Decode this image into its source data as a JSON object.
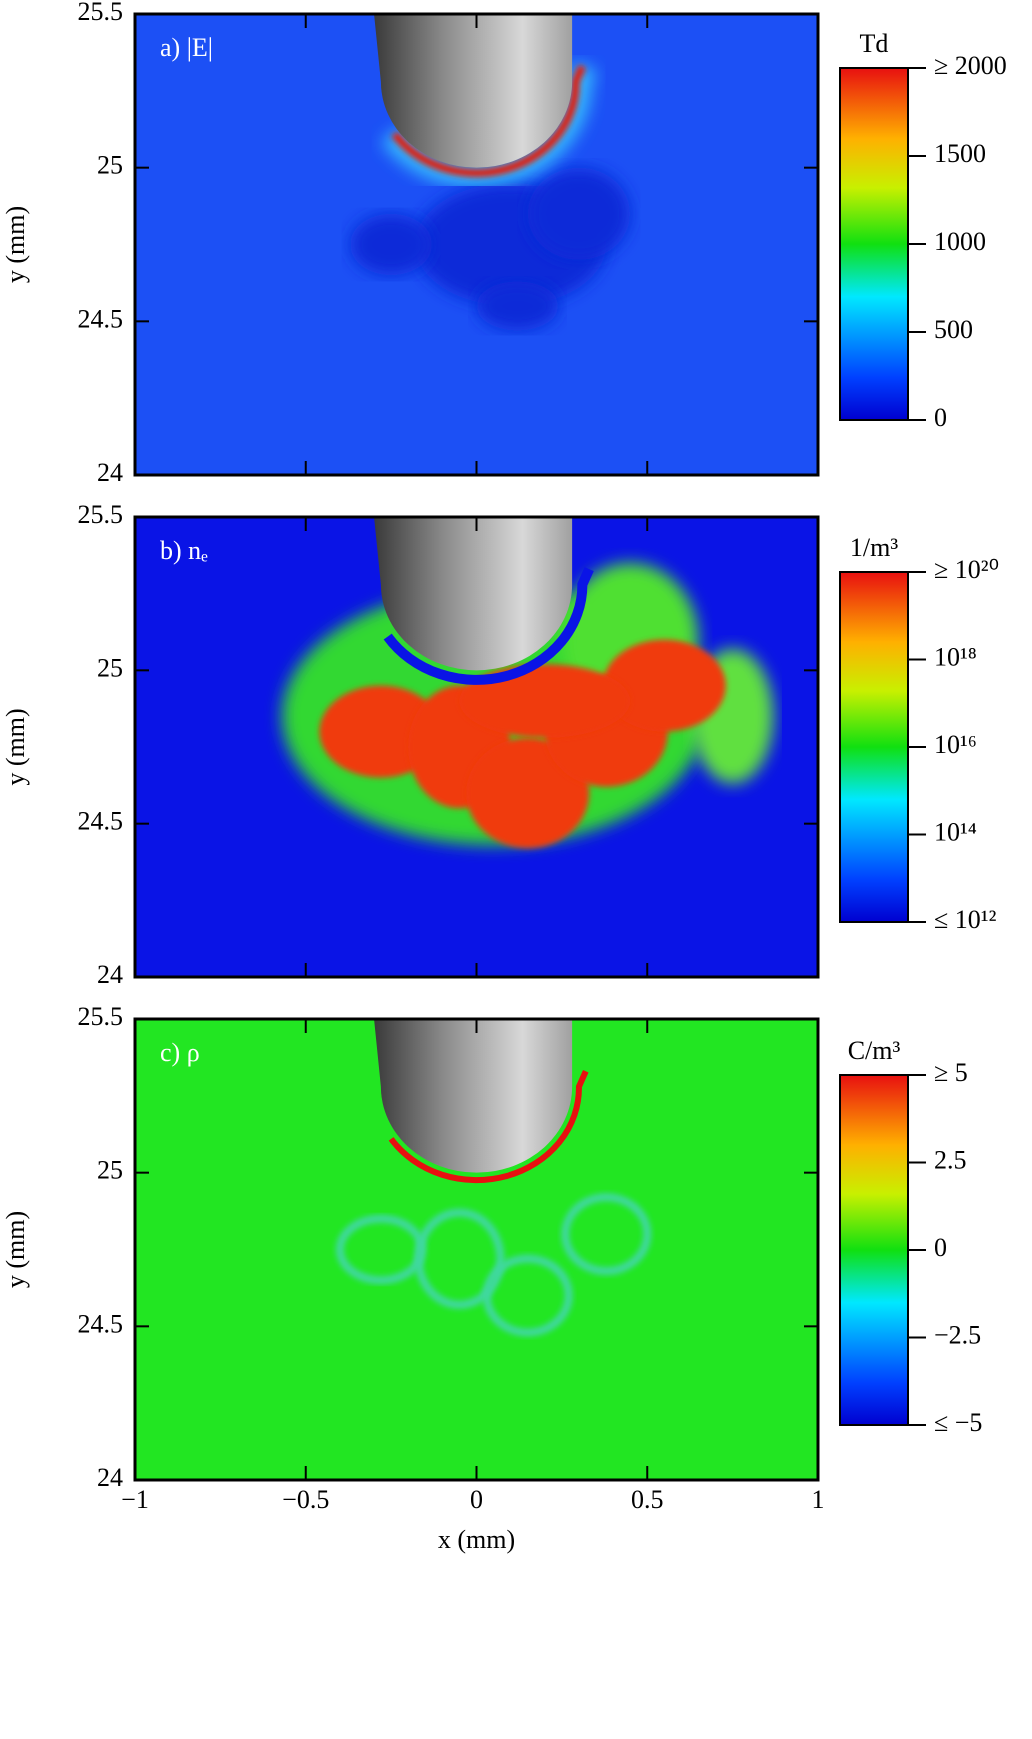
{
  "chart_data": [
    {
      "type": "heatmap",
      "panel_label": "a) |E|",
      "ylabel": "y (mm)",
      "xlim": [
        -1,
        1
      ],
      "xticks": [
        {
          "value": -1,
          "label": "−1"
        },
        {
          "value": -0.5,
          "label": "−0.5"
        },
        0,
        0.5,
        1
      ],
      "show_xtick_labels": false,
      "ylim": [
        24,
        25.5
      ],
      "yticks": [
        24,
        24.5,
        25,
        25.5
      ],
      "background": "#1c50f5",
      "field": "E",
      "colorbar": {
        "title": "Td",
        "clim": [
          0,
          2000
        ],
        "log_scale": false,
        "ticks": [
          {
            "value": 2000,
            "label": "≥ 2000"
          },
          1500,
          1000,
          500,
          0
        ]
      }
    },
    {
      "type": "heatmap",
      "panel_label": "b) nₑ",
      "ylabel": "y (mm)",
      "xlim": [
        -1,
        1
      ],
      "xticks": [
        {
          "value": -1,
          "label": "−1"
        },
        {
          "value": -0.5,
          "label": "−0.5"
        },
        0,
        0.5,
        1
      ],
      "show_xtick_labels": false,
      "ylim": [
        24,
        25.5
      ],
      "yticks": [
        24,
        24.5,
        25,
        25.5
      ],
      "background": "#0a14e6",
      "field": "ne",
      "colorbar": {
        "title": "1/m³",
        "clim": [
          1000000000000.0,
          1e+20
        ],
        "log_scale": true,
        "ticks": [
          {
            "value": 1e+20,
            "label": "≥ 10²⁰"
          },
          {
            "value": 1e+18,
            "label": "10¹⁸"
          },
          {
            "value": 1e+16,
            "label": "10¹⁶"
          },
          {
            "value": 100000000000000.0,
            "label": "10¹⁴"
          },
          {
            "value": 1000000000000.0,
            "label": "≤ 10¹²"
          }
        ]
      }
    },
    {
      "type": "heatmap",
      "panel_label": "c) ρ",
      "ylabel": "y (mm)",
      "xlabel": "x (mm)",
      "xlim": [
        -1,
        1
      ],
      "xticks": [
        {
          "value": -1,
          "label": "−1"
        },
        {
          "value": -0.5,
          "label": "−0.5"
        },
        0,
        0.5,
        1
      ],
      "show_xtick_labels": true,
      "ylim": [
        24,
        25.5
      ],
      "yticks": [
        24,
        24.5,
        25,
        25.5
      ],
      "background": "#22e622",
      "field": "rho",
      "colorbar": {
        "title": "C/m³",
        "clim": [
          -5,
          5
        ],
        "log_scale": false,
        "ticks": [
          {
            "value": 5,
            "label": "≥ 5"
          },
          2.5,
          0,
          {
            "value": -2.5,
            "label": "−2.5"
          },
          {
            "value": -5,
            "label": "≤ −5"
          }
        ]
      }
    }
  ]
}
